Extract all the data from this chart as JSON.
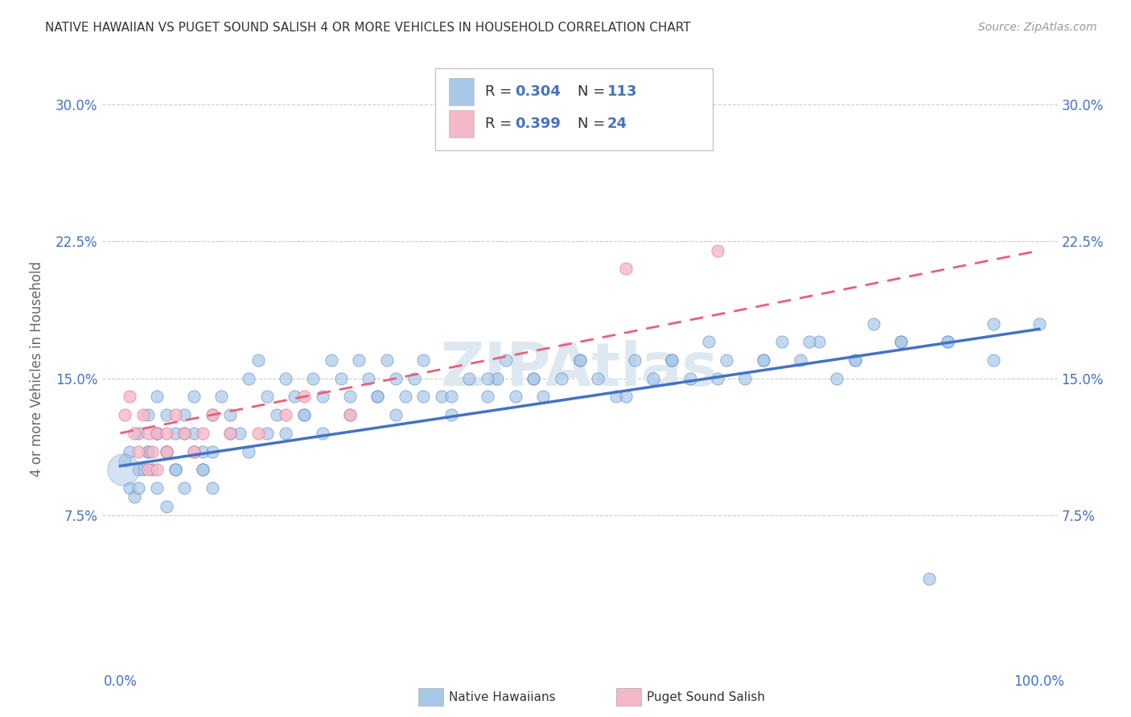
{
  "title": "NATIVE HAWAIIAN VS PUGET SOUND SALISH 4 OR MORE VEHICLES IN HOUSEHOLD CORRELATION CHART",
  "source": "Source: ZipAtlas.com",
  "ylabel": "4 or more Vehicles in Household",
  "xlim": [
    0,
    100
  ],
  "ylim": [
    -1,
    32
  ],
  "ytick_vals": [
    7.5,
    15.0,
    22.5,
    30.0
  ],
  "ytick_labels": [
    "7.5%",
    "15.0%",
    "22.5%",
    "30.0%"
  ],
  "xtick_vals": [
    0,
    100
  ],
  "xtick_labels": [
    "0.0%",
    "100.0%"
  ],
  "blue_color": "#a8c8e8",
  "pink_color": "#f4b8c8",
  "line_blue_color": "#4472c4",
  "line_pink_color": "#e8607a",
  "watermark": "ZIPAtlas",
  "watermark_color": "#dde8f0",
  "title_color": "#333333",
  "axis_label_color": "#666666",
  "tick_color": "#4472c4",
  "source_color": "#999999",
  "grid_color": "#cccccc",
  "blue_line_intercept": 10.2,
  "blue_line_slope": 0.075,
  "pink_line_intercept": 12.0,
  "pink_line_slope": 0.1,
  "blue_x": [
    0.5,
    1,
    1.5,
    2,
    2,
    2.5,
    3,
    3,
    3.5,
    4,
    4,
    4,
    5,
    5,
    5,
    6,
    6,
    7,
    7,
    8,
    8,
    9,
    9,
    10,
    10,
    11,
    12,
    13,
    14,
    15,
    16,
    17,
    18,
    19,
    20,
    21,
    22,
    23,
    24,
    25,
    26,
    27,
    28,
    29,
    30,
    31,
    32,
    33,
    35,
    36,
    38,
    40,
    41,
    42,
    43,
    45,
    46,
    48,
    50,
    52,
    54,
    56,
    58,
    60,
    62,
    64,
    66,
    68,
    70,
    72,
    74,
    76,
    78,
    80,
    82,
    85,
    88,
    90,
    95,
    100,
    1,
    2,
    3,
    4,
    5,
    6,
    7,
    8,
    9,
    10,
    12,
    14,
    16,
    18,
    20,
    22,
    25,
    28,
    30,
    33,
    36,
    40,
    45,
    50,
    55,
    60,
    65,
    70,
    75,
    80,
    85,
    90,
    95
  ],
  "blue_y": [
    10.5,
    9,
    8.5,
    9,
    12,
    10,
    11,
    13,
    10,
    12,
    9,
    14,
    13,
    8,
    11,
    12,
    10,
    9,
    13,
    12,
    14,
    11,
    10,
    13,
    9,
    14,
    13,
    12,
    15,
    16,
    14,
    13,
    15,
    14,
    13,
    15,
    14,
    16,
    15,
    14,
    16,
    15,
    14,
    16,
    15,
    14,
    15,
    16,
    14,
    13,
    15,
    14,
    15,
    16,
    14,
    15,
    14,
    15,
    16,
    15,
    14,
    16,
    15,
    16,
    15,
    17,
    16,
    15,
    16,
    17,
    16,
    17,
    15,
    16,
    18,
    17,
    4,
    17,
    16,
    18,
    11,
    10,
    11,
    12,
    11,
    10,
    12,
    11,
    10,
    11,
    12,
    11,
    12,
    12,
    13,
    12,
    13,
    14,
    13,
    14,
    14,
    15,
    15,
    16,
    14,
    16,
    15,
    16,
    17,
    16,
    17,
    17,
    18
  ],
  "pink_x": [
    0.5,
    1,
    1.5,
    2,
    2.5,
    3,
    3,
    3.5,
    4,
    4,
    5,
    5,
    6,
    7,
    8,
    9,
    10,
    12,
    15,
    18,
    20,
    25,
    55,
    65
  ],
  "pink_y": [
    13,
    14,
    12,
    11,
    13,
    10,
    12,
    11,
    10,
    12,
    11,
    12,
    13,
    12,
    11,
    12,
    13,
    12,
    12,
    13,
    14,
    13,
    21,
    22
  ]
}
